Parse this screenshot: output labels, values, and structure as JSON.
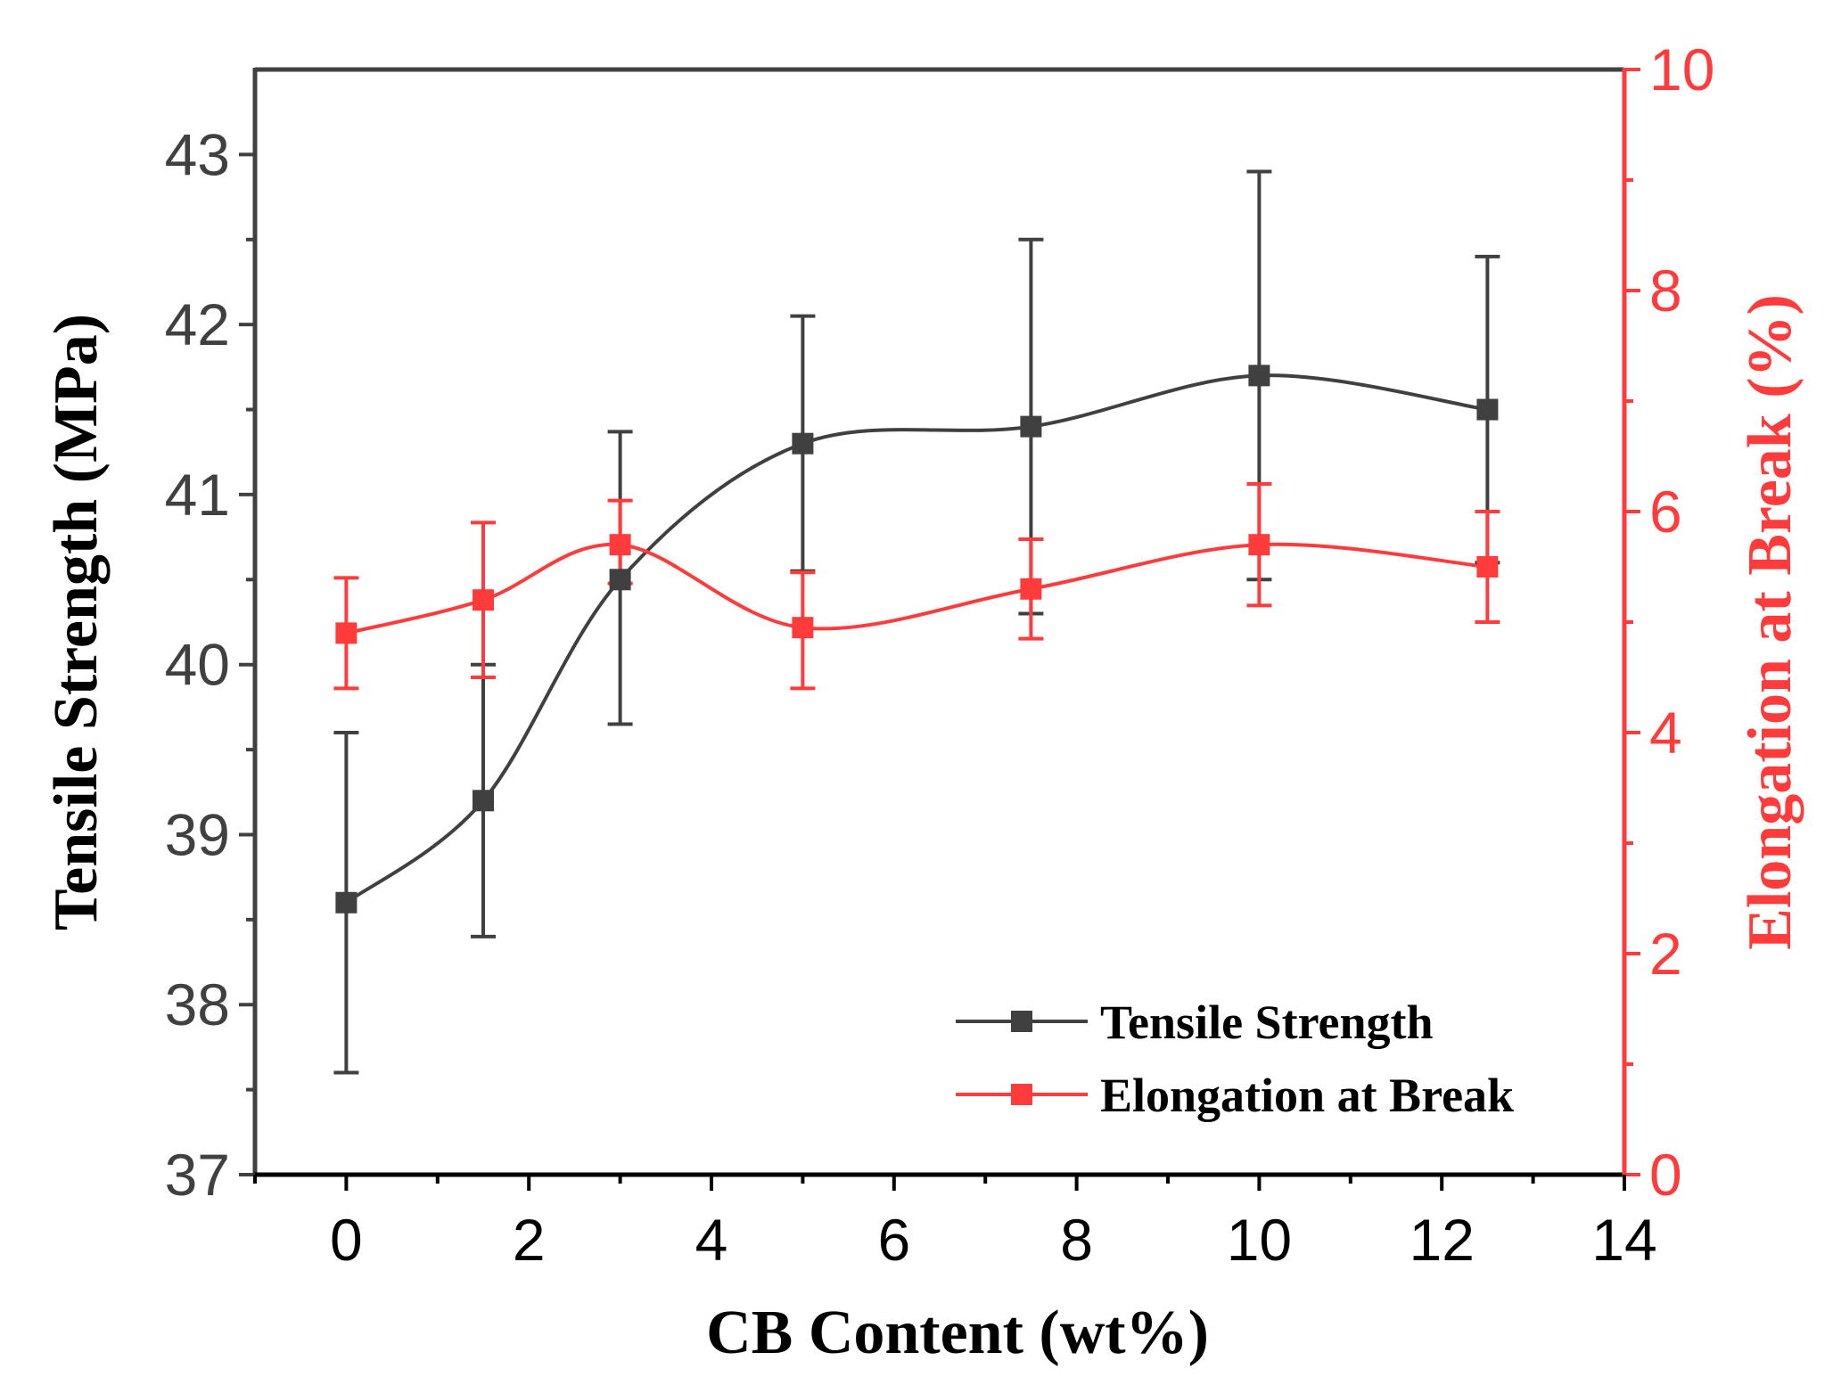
{
  "chart_data": {
    "type": "line",
    "title": "",
    "xlabel": "CB Content (wt%)",
    "ylabel_left": "Tensile Strength (MPa)",
    "ylabel_right": "Elongation at Break (%)",
    "xlim": [
      -1,
      14
    ],
    "ylim_left": [
      37,
      43.5
    ],
    "ylim_right": [
      0,
      10
    ],
    "x_ticks": [
      0,
      2,
      4,
      6,
      8,
      10,
      12,
      14
    ],
    "x_tick_labels": [
      "0",
      "2",
      "4",
      "6",
      "8",
      "10",
      "12",
      "14"
    ],
    "y_left_ticks": [
      37,
      38,
      39,
      40,
      41,
      42,
      43
    ],
    "y_left_tick_labels": [
      "37",
      "38",
      "39",
      "40",
      "41",
      "42",
      "43"
    ],
    "y_right_ticks": [
      0,
      2,
      4,
      6,
      8,
      10
    ],
    "y_right_tick_labels": [
      "0",
      "2",
      "4",
      "6",
      "8",
      "10"
    ],
    "legend_position": "bottom-right",
    "grid": false,
    "x": [
      0,
      1.5,
      3,
      5,
      7.5,
      10,
      12.5
    ],
    "series": [
      {
        "name": "Tensile Strength",
        "axis": "left",
        "color": "#404040",
        "values": [
          38.6,
          39.2,
          40.5,
          41.3,
          41.4,
          41.7,
          41.5
        ],
        "error_low": [
          37.6,
          38.4,
          39.65,
          40.55,
          40.3,
          40.5,
          40.6
        ],
        "error_high": [
          39.6,
          40.0,
          41.37,
          42.05,
          42.5,
          42.9,
          42.4
        ]
      },
      {
        "name": "Elongation at Break",
        "axis": "right",
        "color": "#ff3b3b",
        "values": [
          4.9,
          5.2,
          5.7,
          4.95,
          5.3,
          5.7,
          5.5
        ],
        "error_low": [
          4.4,
          4.5,
          5.35,
          4.4,
          4.85,
          5.15,
          5.0
        ],
        "error_high": [
          5.4,
          5.9,
          6.1,
          5.45,
          5.75,
          6.25,
          6.0
        ]
      }
    ]
  }
}
